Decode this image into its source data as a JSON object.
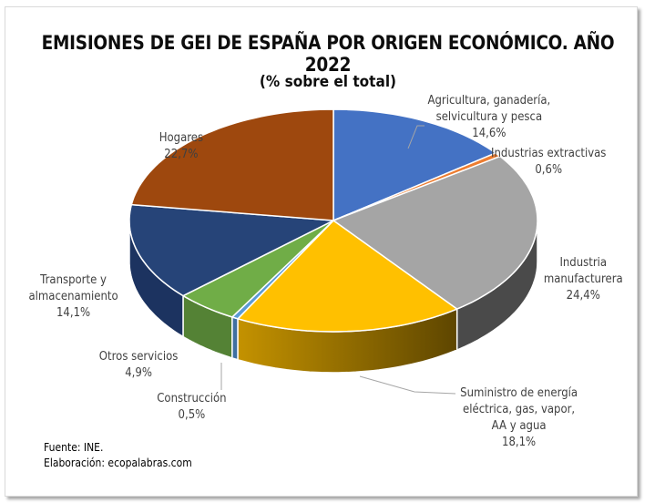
{
  "chart_data": {
    "type": "pie",
    "style": "3d-pie",
    "title": "EMISIONES DE GEI DE ESPAÑA POR ORIGEN ECONÓMICO. AÑO 2022",
    "subtitle": "(% sobre el total)",
    "unit": "%",
    "categories": [
      "Agricultura, ganadería, selvicultura y pesca",
      "Industrias extractivas",
      "Industria manufacturera",
      "Suministro de energía eléctrica, gas, vapor, AA y agua",
      "Construcción",
      "Otros servicios",
      "Transporte y almacenamiento",
      "Hogares"
    ],
    "values": [
      14.6,
      0.6,
      24.4,
      18.1,
      0.5,
      4.9,
      14.1,
      22.7
    ],
    "value_labels": [
      "14,6%",
      "0,6%",
      "24,4%",
      "18,1%",
      "0,5%",
      "4,9%",
      "14,1%",
      "22,7%"
    ],
    "colors": [
      "#4472C4",
      "#ED7D31",
      "#A5A5A5",
      "#FFC000",
      "#5B9BD5",
      "#70AD47",
      "#264478",
      "#9E480E"
    ],
    "side_colors": [
      "#2F528F",
      "#B85E22",
      "#4A4A4A",
      "#8C6A00",
      "#3F70A0",
      "#548235",
      "#1C3360",
      "#6E320A"
    ],
    "start_angle_deg": 0,
    "direction": "clockwise",
    "legend": "none (data labels with category names)",
    "footer": [
      "Fuente: INE.",
      "Elaboración: ecopalabras.com"
    ]
  },
  "labels": {
    "agri": {
      "lines": [
        "Agricultura, ganadería,",
        "selvicultura y pesca",
        "14,6%"
      ]
    },
    "extr": {
      "lines": [
        "Industrias extractivas",
        "0,6%"
      ]
    },
    "manu": {
      "lines": [
        "Industria",
        "manufacturera",
        "24,4%"
      ]
    },
    "sumi": {
      "lines": [
        "Suministro de energía",
        "eléctrica, gas, vapor,",
        "AA y agua",
        "18,1%"
      ]
    },
    "cons": {
      "lines": [
        "Construcción",
        "0,5%"
      ]
    },
    "otro": {
      "lines": [
        "Otros servicios",
        "4,9%"
      ]
    },
    "tran": {
      "lines": [
        "Transporte y",
        "almacenamiento",
        "14,1%"
      ]
    },
    "hoga": {
      "lines": [
        "Hogares",
        "22,7%"
      ]
    }
  },
  "footer": {
    "source": "Fuente: INE.",
    "author": "Elaboración: ecopalabras.com"
  }
}
